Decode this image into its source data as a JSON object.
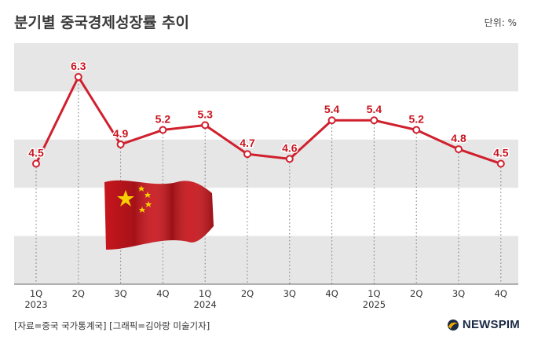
{
  "header": {
    "title": "분기별 중국경제성장률 추이",
    "unit": "단위: %"
  },
  "footer": {
    "source": "[자료=중국 국가통계국] [그래픽=김아랑 미술기자]",
    "brand": "NEWSPIM"
  },
  "chart_data": {
    "type": "line",
    "title": "분기별 중국경제성장률 추이",
    "categories": [
      "1Q",
      "2Q",
      "3Q",
      "4Q",
      "1Q",
      "2Q",
      "3Q",
      "4Q",
      "1Q",
      "2Q",
      "3Q",
      "4Q"
    ],
    "year_labels": [
      {
        "index": 0,
        "label": "2023"
      },
      {
        "index": 4,
        "label": "2024"
      },
      {
        "index": 8,
        "label": "2025"
      }
    ],
    "series": [
      {
        "values": [
          4.5,
          6.3,
          4.9,
          5.2,
          5.3,
          4.7,
          4.6,
          5.4,
          5.4,
          5.2,
          4.8,
          4.5
        ]
      }
    ],
    "ylim": [
      2.0,
      7.0
    ],
    "grid": "alternating horizontal bands",
    "colors": {
      "line": "#d0202e",
      "band": "#e6e6e6",
      "label": "#c8141f"
    }
  }
}
